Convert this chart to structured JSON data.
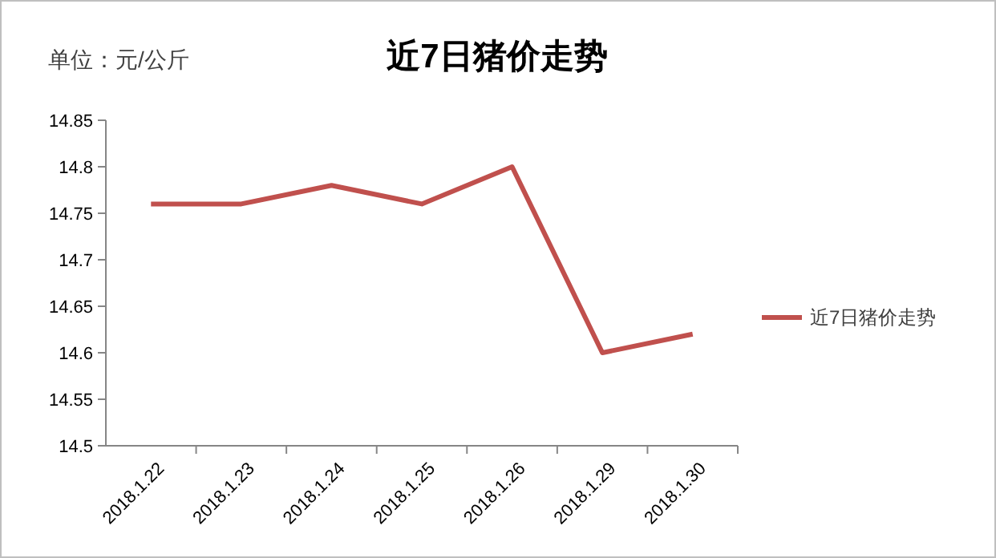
{
  "chart_data": {
    "type": "line",
    "title": "近7日猪价走势",
    "annotations": [
      "单位：元/公斤"
    ],
    "categories": [
      "2018.1.22",
      "2018.1.23",
      "2018.1.24",
      "2018.1.25",
      "2018.1.26",
      "2018.1.29",
      "2018.1.30"
    ],
    "series": [
      {
        "name": "近7日猪价走势",
        "color": "#c0504d",
        "values": [
          14.76,
          14.76,
          14.78,
          14.76,
          14.8,
          14.6,
          14.62
        ]
      }
    ],
    "ylim": [
      14.5,
      14.85
    ],
    "yticks": [
      14.5,
      14.55,
      14.6,
      14.65,
      14.7,
      14.75,
      14.8,
      14.85
    ],
    "grid": false,
    "legend": "right",
    "marker": "none",
    "line_style": "solid"
  }
}
